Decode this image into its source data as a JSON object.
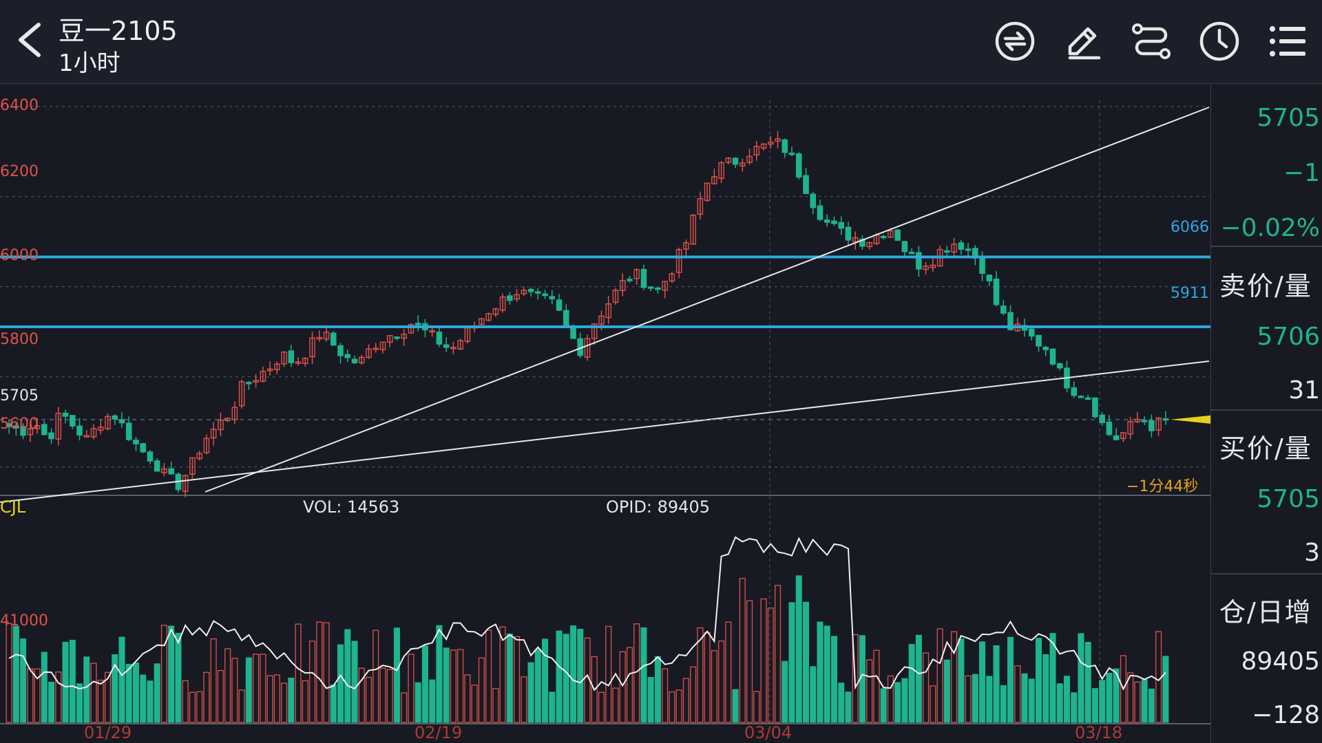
{
  "header": {
    "title": "豆一2105",
    "subtitle": "1小时",
    "icons": [
      "back-arrow-icon",
      "exchange-icon",
      "edit-icon",
      "route-icon",
      "clock-icon",
      "menu-icon"
    ]
  },
  "chart": {
    "y_axis": [
      "6400",
      "6200",
      "6000",
      "5800",
      "5600"
    ],
    "current_price_label": "5705",
    "levels": [
      "6066",
      "5911"
    ],
    "countdown": "−1分44秒",
    "vol_panel": {
      "name": "CJL",
      "vol_label": "VOL: 14563",
      "opid_label": "OPID: 89405",
      "axis_label": "41000"
    },
    "x_axis": [
      "01/29",
      "02/19",
      "03/04",
      "03/18"
    ]
  },
  "chart_data": {
    "type": "candlestick",
    "symbol": "豆一2105",
    "interval": "1小时",
    "y_ticks": [
      6400,
      6200,
      6000,
      5800,
      5600
    ],
    "ylim": [
      5540,
      6450
    ],
    "horizontal_levels": [
      6066,
      5911
    ],
    "last_price": 5705,
    "closes_approx": [
      5690,
      5680,
      5700,
      5660,
      5720,
      5690,
      5660,
      5700,
      5720,
      5680,
      5640,
      5620,
      5580,
      5560,
      5600,
      5660,
      5690,
      5720,
      5780,
      5800,
      5820,
      5850,
      5830,
      5860,
      5900,
      5870,
      5840,
      5830,
      5870,
      5890,
      5900,
      5920,
      5900,
      5880,
      5860,
      5890,
      5920,
      5950,
      5970,
      5990,
      5980,
      5970,
      5960,
      5900,
      5860,
      5920,
      5960,
      6000,
      6030,
      6010,
      5990,
      6040,
      6090,
      6180,
      6250,
      6270,
      6280,
      6300,
      6310,
      6320,
      6300,
      6240,
      6180,
      6140,
      6120,
      6110,
      6100,
      6120,
      6130,
      6080,
      6050,
      6060,
      6090,
      6100,
      6080,
      6040,
      5960,
      5910,
      5900,
      5880,
      5860,
      5800,
      5770,
      5760,
      5700,
      5660,
      5680,
      5710,
      5690,
      5705
    ],
    "volume_axis_tick": 41000,
    "vol": 14563,
    "opid": 89405,
    "x_ticks": [
      "01/29",
      "02/19",
      "03/04",
      "03/18"
    ]
  },
  "sidebar": {
    "last": "5705",
    "change": "−1",
    "change_pct": "−0.02%",
    "ask_label": "卖价/量",
    "ask_price": "5706",
    "ask_vol": "31",
    "bid_label": "买价/量",
    "bid_price": "5705",
    "bid_vol": "3",
    "oi_label": "仓/日增",
    "oi": "89405",
    "oi_change": "−128"
  },
  "colors": {
    "up": "#e0524a",
    "down": "#1fb38e",
    "level": "#2fa8dc",
    "marker": "#e6d21a",
    "bg": "#171a23"
  }
}
